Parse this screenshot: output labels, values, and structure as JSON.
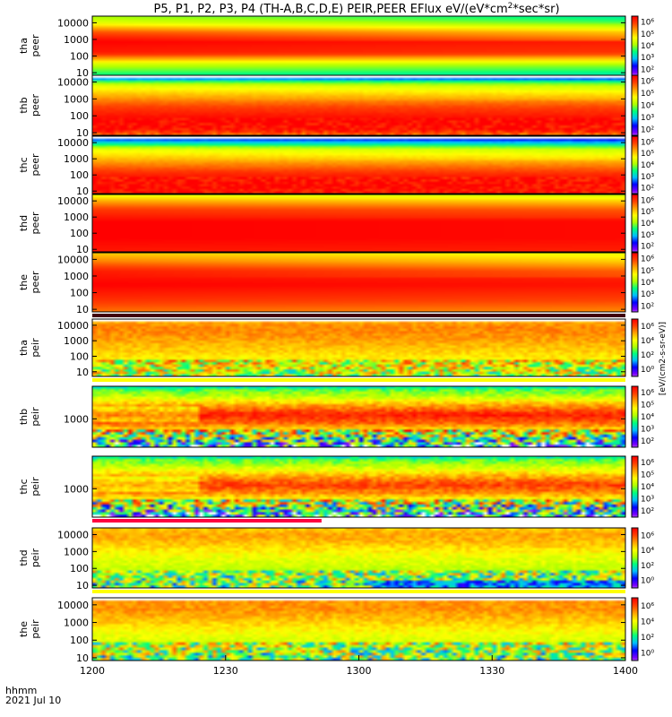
{
  "title": "P5, P1, P2, P3, P4 (TH-A,B,C,D,E) PEIR,PEER EFlux eV/(eV*cm",
  "title_sup": "2",
  "title_tail": "*sec*sr)",
  "footer": {
    "line1": "hhmm",
    "line2": "2021 Jul 10"
  },
  "colorbar_unit_label": "[eV/(cm2-s-sr-eV)]",
  "colors": {
    "colormap": [
      "#ffffff",
      "#7f00ff",
      "#0000ff",
      "#00bfff",
      "#00ff7f",
      "#b0ff00",
      "#ffff00",
      "#ffa500",
      "#ff4500",
      "#ff0000"
    ],
    "flag_red": "#ff0040",
    "flag_yellow": "#ffff00",
    "flag_dark": "#400010"
  },
  "chart_data": {
    "type": "heatmap",
    "x_ticks": [
      "1200",
      "1230",
      "1300",
      "1330",
      "1400"
    ],
    "x_range_hhmm": [
      "1200",
      "1400"
    ],
    "y_scale": "log",
    "panels": [
      {
        "probe": "tha",
        "species": "peer",
        "ylabel_top": "tha",
        "ylabel_bottom": "peer",
        "yticks": [
          "10000",
          "1000",
          "100",
          "10"
        ],
        "yrange_eV": [
          7,
          25000
        ],
        "colorbar_ticks": [
          "10⁶",
          "10⁵",
          "10⁴",
          "10³",
          "10²"
        ],
        "colorbar_range_exp": [
          1.5,
          6.5
        ],
        "profile": [
          [
            5,
            0.35
          ],
          [
            30,
            0.55
          ],
          [
            150,
            0.95
          ],
          [
            800,
            1.0
          ],
          [
            3000,
            0.85
          ],
          [
            10000,
            0.6
          ],
          [
            25000,
            0.5
          ]
        ],
        "drift": 0.15,
        "speckle": 0.0
      },
      {
        "probe": "thb",
        "species": "peer",
        "ylabel_top": "thb",
        "ylabel_bottom": "peer",
        "yticks": [
          "10000",
          "1000",
          "100",
          "10"
        ],
        "yrange_eV": [
          7,
          25000
        ],
        "colorbar_ticks": [
          "10⁶",
          "10⁵",
          "10⁴",
          "10³",
          "10²"
        ],
        "colorbar_range_exp": [
          1.5,
          6.5
        ],
        "profile": [
          [
            5,
            0.75
          ],
          [
            15,
            0.98
          ],
          [
            60,
            1.0
          ],
          [
            300,
            0.9
          ],
          [
            1500,
            0.75
          ],
          [
            6000,
            0.6
          ],
          [
            12000,
            0.4
          ],
          [
            20000,
            0.1
          ]
        ],
        "drift": 0.05,
        "speckle": 0.05,
        "top_gap": true
      },
      {
        "probe": "thc",
        "species": "peer",
        "ylabel_top": "thc",
        "ylabel_bottom": "peer",
        "yticks": [
          "10000",
          "1000",
          "100",
          "10"
        ],
        "yrange_eV": [
          7,
          25000
        ],
        "colorbar_ticks": [
          "10⁶",
          "10⁵",
          "10⁴",
          "10³",
          "10²"
        ],
        "colorbar_range_exp": [
          1.5,
          6.5
        ],
        "profile": [
          [
            5,
            0.95
          ],
          [
            20,
            1.0
          ],
          [
            100,
            0.95
          ],
          [
            800,
            0.75
          ],
          [
            4000,
            0.6
          ],
          [
            9000,
            0.35
          ],
          [
            20000,
            0.15
          ]
        ],
        "drift": 0.05,
        "speckle": 0.05,
        "top_gap": true
      },
      {
        "probe": "thd",
        "species": "peer",
        "ylabel_top": "thd",
        "ylabel_bottom": "peer",
        "yticks": [
          "10000",
          "1000",
          "100",
          "10"
        ],
        "yrange_eV": [
          7,
          25000
        ],
        "colorbar_ticks": [
          "10⁶",
          "10⁵",
          "10⁴",
          "10³",
          "10²"
        ],
        "colorbar_range_exp": [
          1.5,
          6.5
        ],
        "profile": [
          [
            5,
            0.95
          ],
          [
            50,
            1.0
          ],
          [
            500,
            1.0
          ],
          [
            3000,
            0.9
          ],
          [
            10000,
            0.75
          ],
          [
            25000,
            0.6
          ]
        ],
        "drift": 0.05,
        "speckle": 0.0
      },
      {
        "probe": "the",
        "species": "peer",
        "ylabel_top": "the",
        "ylabel_bottom": "peer",
        "yticks": [
          "10000",
          "1000",
          "100",
          "10"
        ],
        "yrange_eV": [
          7,
          25000
        ],
        "colorbar_ticks": [
          "10⁶",
          "10⁵",
          "10⁴",
          "10³",
          "10²"
        ],
        "colorbar_range_exp": [
          1.5,
          6.5
        ],
        "profile": [
          [
            5,
            0.8
          ],
          [
            40,
            0.92
          ],
          [
            300,
            1.0
          ],
          [
            2000,
            0.95
          ],
          [
            8000,
            0.8
          ],
          [
            25000,
            0.7
          ]
        ],
        "drift": 0.1,
        "speckle": 0.0,
        "bottom_flag": "dark"
      },
      {
        "probe": "tha",
        "species": "peir",
        "ylabel_top": "tha",
        "ylabel_bottom": "peir",
        "yticks": [
          "10000",
          "1000",
          "100",
          "10"
        ],
        "yrange_eV": [
          5,
          25000
        ],
        "colorbar_ticks": [
          "10⁶",
          "10⁴",
          "10²",
          "10⁰"
        ],
        "colorbar_range_exp": [
          -0.5,
          7
        ],
        "profile": [
          [
            5,
            0.55
          ],
          [
            20,
            0.6
          ],
          [
            200,
            0.7
          ],
          [
            2000,
            0.78
          ],
          [
            8000,
            0.8
          ],
          [
            25000,
            0.72
          ]
        ],
        "drift": 0.0,
        "speckle": 0.18,
        "top_gap": true,
        "bottom_flag": "yellow"
      },
      {
        "probe": "thb",
        "species": "peir",
        "ylabel_top": "thb",
        "ylabel_bottom": "peir",
        "yticks": [
          "1000"
        ],
        "yrange_eV": [
          60,
          25000
        ],
        "colorbar_ticks": [
          "10⁶",
          "10⁵",
          "10⁴",
          "10³",
          "10²"
        ],
        "colorbar_range_exp": [
          1.5,
          6.5
        ],
        "profile": [
          [
            60,
            0.2
          ],
          [
            120,
            0.45
          ],
          [
            300,
            0.65
          ],
          [
            700,
            0.85
          ],
          [
            1500,
            0.95
          ],
          [
            4000,
            0.75
          ],
          [
            9000,
            0.55
          ],
          [
            18000,
            0.45
          ],
          [
            25000,
            0.3
          ]
        ],
        "drift": 0.0,
        "speckle": 0.25,
        "bands": true
      },
      {
        "probe": "thc",
        "species": "peir",
        "ylabel_top": "thc",
        "ylabel_bottom": "peir",
        "yticks": [
          "1000"
        ],
        "yrange_eV": [
          60,
          25000
        ],
        "colorbar_ticks": [
          "10⁶",
          "10⁵",
          "10⁴",
          "10³",
          "10²"
        ],
        "colorbar_range_exp": [
          1.5,
          6.5
        ],
        "profile": [
          [
            60,
            0.2
          ],
          [
            120,
            0.4
          ],
          [
            300,
            0.6
          ],
          [
            700,
            0.8
          ],
          [
            1500,
            0.9
          ],
          [
            4000,
            0.72
          ],
          [
            9000,
            0.55
          ],
          [
            18000,
            0.45
          ],
          [
            25000,
            0.3
          ]
        ],
        "drift": 0.0,
        "speckle": 0.25,
        "bands": true,
        "bottom_flag": "red"
      },
      {
        "probe": "thd",
        "species": "peir",
        "ylabel_top": "thd",
        "ylabel_bottom": "peir",
        "yticks": [
          "10000",
          "1000",
          "100",
          "10"
        ],
        "yrange_eV": [
          7,
          25000
        ],
        "colorbar_ticks": [
          "10⁶",
          "10⁴",
          "10²",
          "10⁰"
        ],
        "colorbar_range_exp": [
          -0.5,
          7
        ],
        "profile": [
          [
            5,
            0.45
          ],
          [
            20,
            0.5
          ],
          [
            100,
            0.55
          ],
          [
            600,
            0.62
          ],
          [
            3000,
            0.72
          ],
          [
            10000,
            0.76
          ],
          [
            25000,
            0.7
          ]
        ],
        "drift": 0.0,
        "speckle": 0.2,
        "bottom_flag": "yellow",
        "late_noise": true
      },
      {
        "probe": "the",
        "species": "peir",
        "ylabel_top": "the",
        "ylabel_bottom": "peir",
        "yticks": [
          "10000",
          "1000",
          "100",
          "10"
        ],
        "yrange_eV": [
          7,
          25000
        ],
        "colorbar_ticks": [
          "10⁶",
          "10⁴",
          "10²",
          "10⁰"
        ],
        "colorbar_range_exp": [
          -0.5,
          7
        ],
        "profile": [
          [
            5,
            0.45
          ],
          [
            20,
            0.52
          ],
          [
            150,
            0.6
          ],
          [
            1000,
            0.7
          ],
          [
            5000,
            0.78
          ],
          [
            15000,
            0.78
          ],
          [
            25000,
            0.72
          ]
        ],
        "drift": 0.0,
        "speckle": 0.2,
        "top_gap": true
      }
    ]
  }
}
